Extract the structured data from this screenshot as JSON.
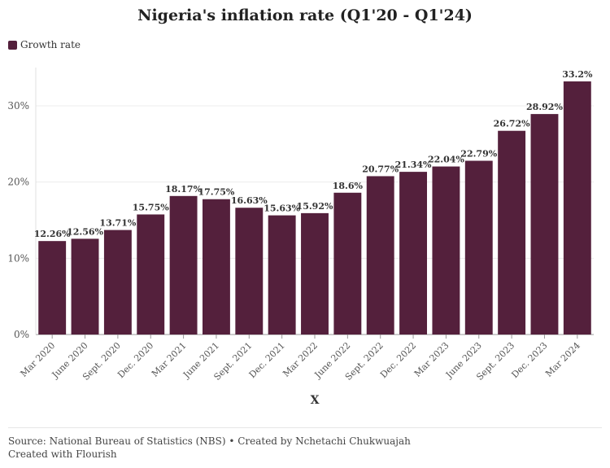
{
  "title": "Nigeria's inflation rate (Q1'20 - Q1'24)",
  "legend": {
    "label": "Growth rate",
    "color": "#54203c"
  },
  "footer": {
    "source": "Source: National Bureau of Statistics (NBS) • Created by Nchetachi Chukwuajah",
    "credit": "Created with Flourish"
  },
  "chart_data": {
    "type": "bar",
    "title": "Nigeria's inflation rate (Q1'20 - Q1'24)",
    "xlabel": "X",
    "ylabel": "",
    "ylim": [
      0,
      35
    ],
    "yticks": [
      0,
      10,
      20,
      30
    ],
    "ytick_labels": [
      "0%",
      "10%",
      "20%",
      "30%"
    ],
    "grid": true,
    "legend_position": "top-left",
    "categories": [
      "Mar 2020",
      "June 2020",
      "Sept. 2020",
      "Dec. 2020",
      "Mar 2021",
      "June 2021",
      "Sept. 2021",
      "Dec. 2021",
      "Mar 2022",
      "June 2022",
      "Sept. 2022",
      "Dec. 2022",
      "Mar 2023",
      "June 2023",
      "Sept. 2023",
      "Dec. 2023",
      "Mar 2024"
    ],
    "series": [
      {
        "name": "Growth rate",
        "color": "#54203c",
        "values": [
          12.26,
          12.56,
          13.71,
          15.75,
          18.17,
          17.75,
          16.63,
          15.63,
          15.92,
          18.6,
          20.77,
          21.34,
          22.04,
          22.79,
          26.72,
          28.92,
          33.2
        ],
        "labels": [
          "12.26%",
          "12.56%",
          "13.71%",
          "15.75%",
          "18.17%",
          "17.75%",
          "16.63%",
          "15.63%",
          "15.92%",
          "18.6%",
          "20.77%",
          "21.34%",
          "22.04%",
          "22.79%",
          "26.72%",
          "28.92%",
          "33.2%"
        ]
      }
    ]
  }
}
